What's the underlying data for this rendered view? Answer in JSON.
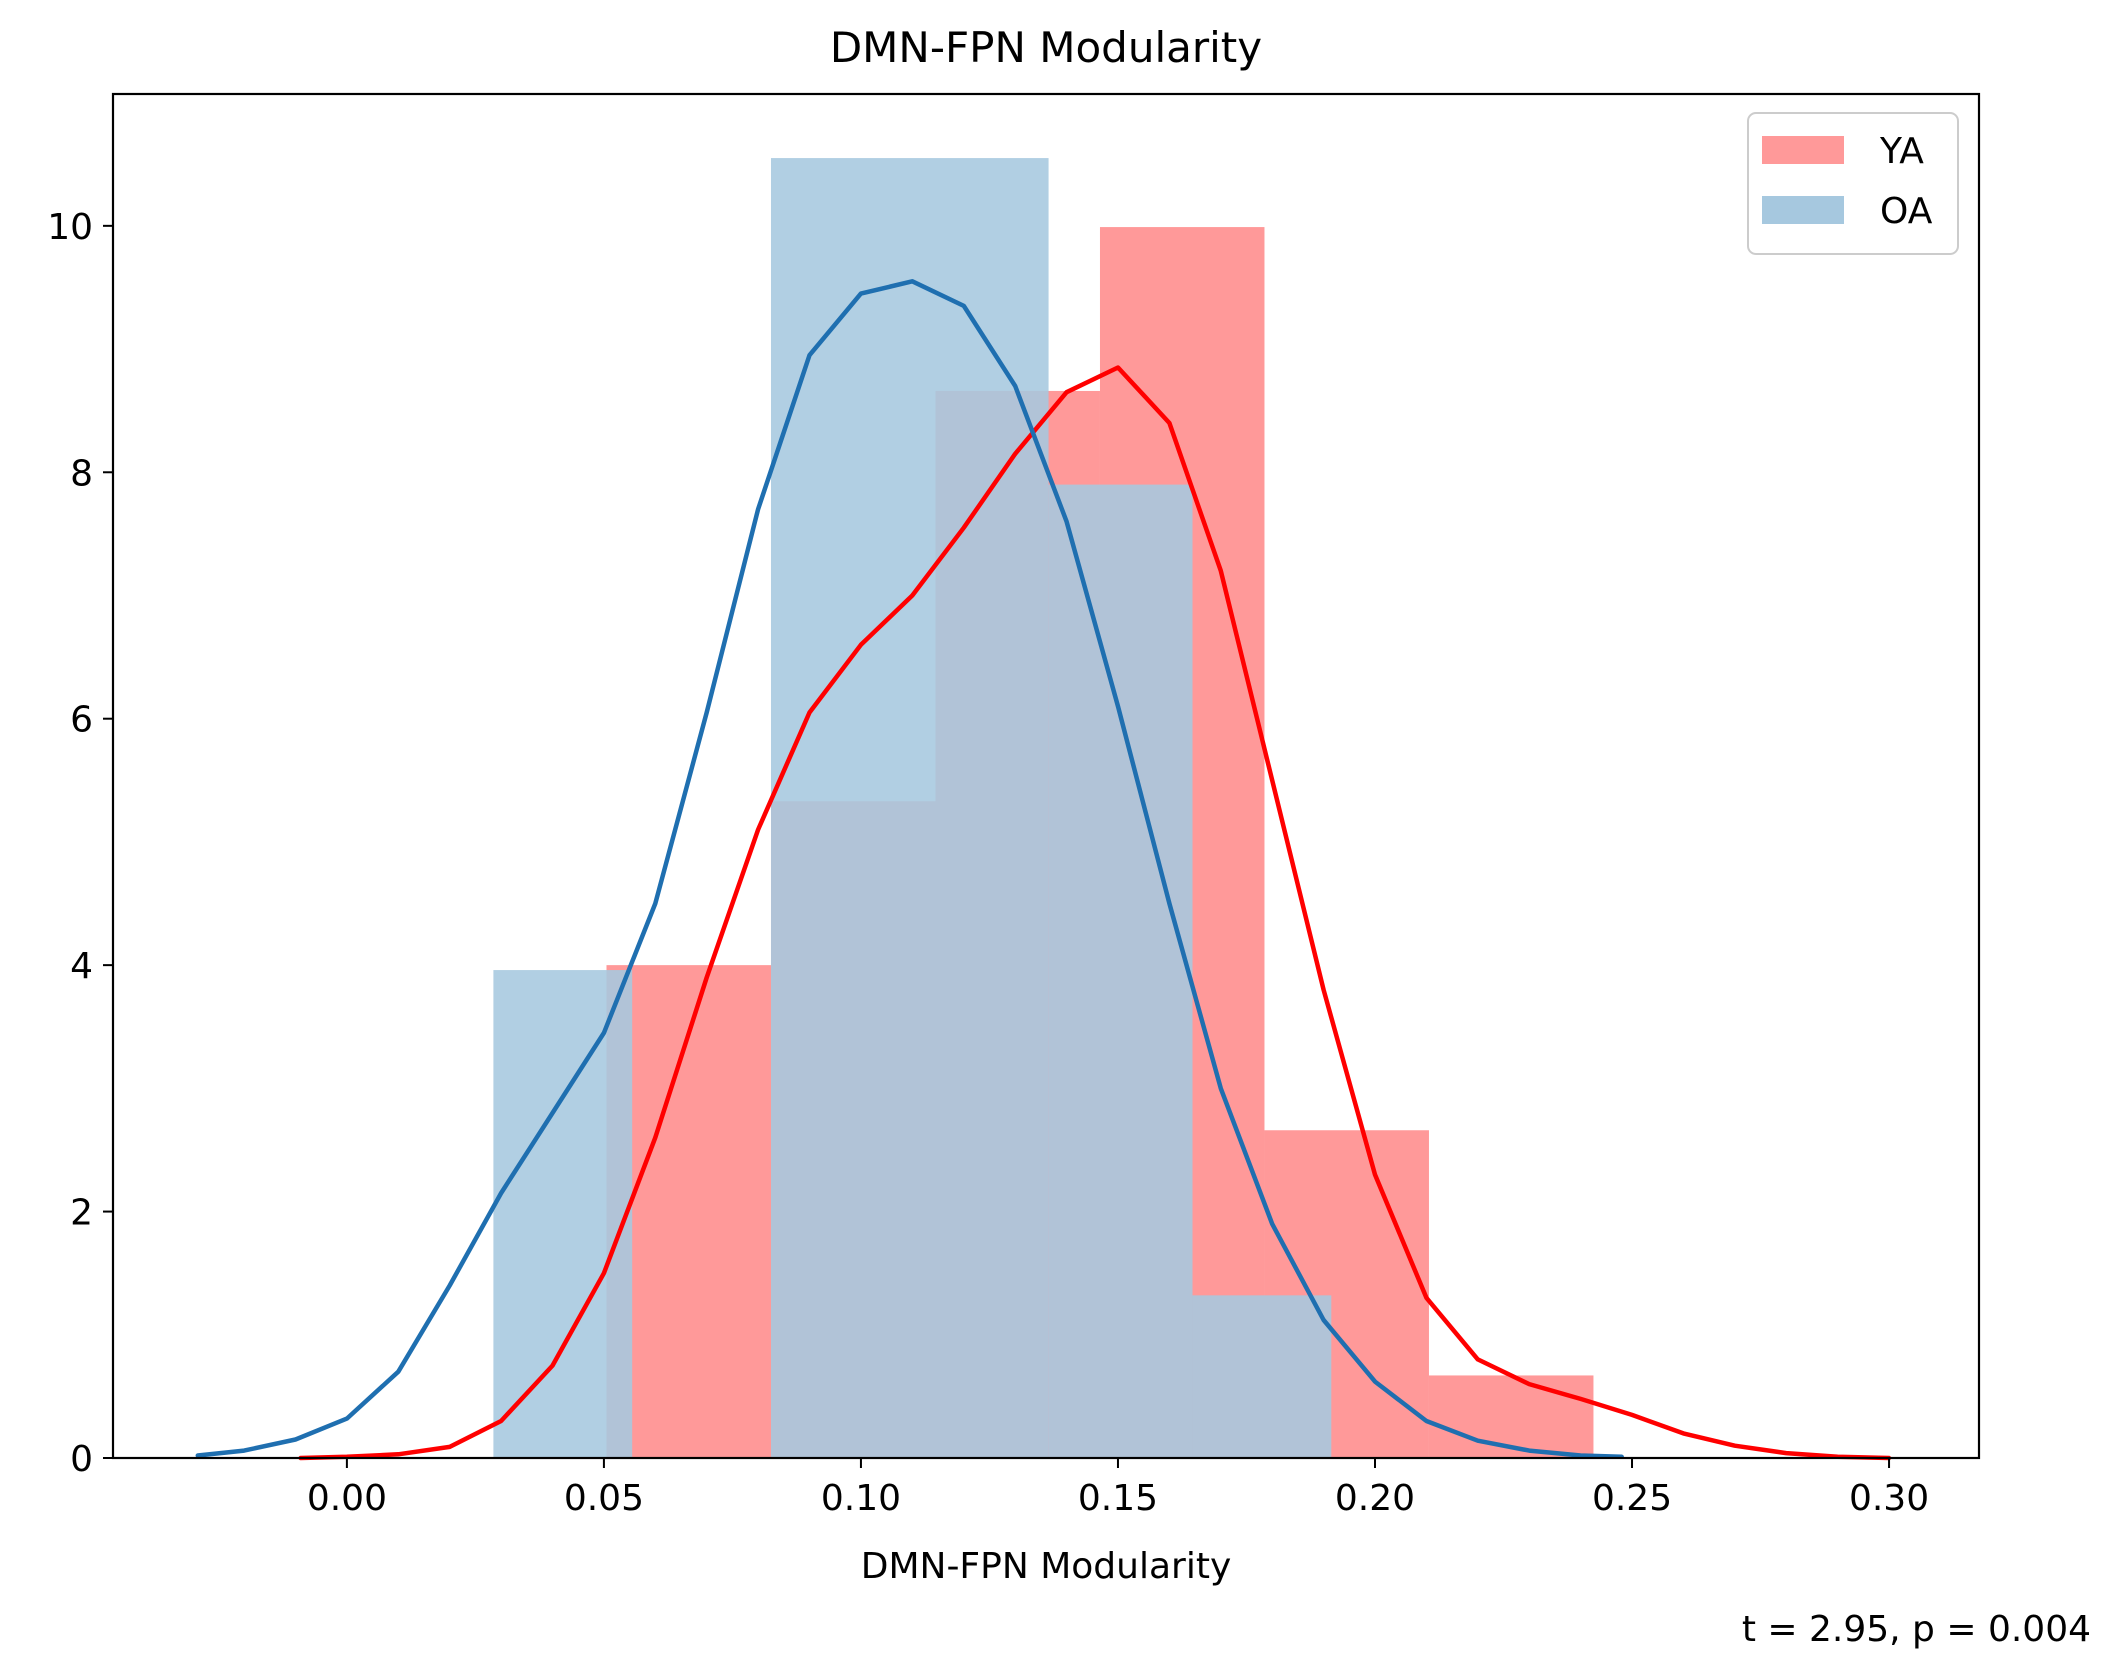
{
  "chart_data": {
    "type": "histogram",
    "title": "DMN-FPN Modularity",
    "xlabel": "DMN-FPN Modularity",
    "ylabel": "",
    "xlim": [
      -0.0455,
      0.3175
    ],
    "ylim": [
      0,
      11.07
    ],
    "x_ticks": [
      0.0,
      0.05,
      0.1,
      0.15,
      0.2,
      0.25,
      0.3
    ],
    "x_tick_labels": [
      "0.00",
      "0.05",
      "0.10",
      "0.15",
      "0.20",
      "0.25",
      "0.30"
    ],
    "y_ticks": [
      0,
      2,
      4,
      6,
      8,
      10
    ],
    "y_tick_labels": [
      "0",
      "2",
      "4",
      "6",
      "8",
      "10"
    ],
    "legend_position": "top-right",
    "annotation": "t = 2.95, p = 0.004",
    "series": [
      {
        "name": "YA",
        "bar_color": "#ff9999",
        "line_color": "#ff0000",
        "bins": [
          [
            0.0505,
            0.0825,
            4.0
          ],
          [
            0.0825,
            0.1145,
            5.33
          ],
          [
            0.1145,
            0.1465,
            8.66
          ],
          [
            0.1465,
            0.1785,
            9.99
          ],
          [
            0.1785,
            0.2105,
            2.66
          ],
          [
            0.2105,
            0.2425,
            0.67
          ]
        ],
        "kde": [
          [
            -0.009,
            0.0
          ],
          [
            0.0,
            0.01
          ],
          [
            0.01,
            0.03
          ],
          [
            0.02,
            0.09
          ],
          [
            0.03,
            0.3
          ],
          [
            0.04,
            0.75
          ],
          [
            0.05,
            1.5
          ],
          [
            0.06,
            2.6
          ],
          [
            0.07,
            3.9
          ],
          [
            0.08,
            5.1
          ],
          [
            0.09,
            6.05
          ],
          [
            0.1,
            6.6
          ],
          [
            0.11,
            7.0
          ],
          [
            0.12,
            7.55
          ],
          [
            0.13,
            8.15
          ],
          [
            0.14,
            8.65
          ],
          [
            0.15,
            8.85
          ],
          [
            0.16,
            8.4
          ],
          [
            0.17,
            7.2
          ],
          [
            0.18,
            5.5
          ],
          [
            0.19,
            3.8
          ],
          [
            0.2,
            2.3
          ],
          [
            0.21,
            1.3
          ],
          [
            0.22,
            0.8
          ],
          [
            0.23,
            0.6
          ],
          [
            0.24,
            0.48
          ],
          [
            0.25,
            0.35
          ],
          [
            0.26,
            0.2
          ],
          [
            0.27,
            0.1
          ],
          [
            0.28,
            0.04
          ],
          [
            0.29,
            0.01
          ],
          [
            0.3,
            0.0
          ]
        ]
      },
      {
        "name": "OA",
        "bar_color": "#a6c8df",
        "line_color": "#1f6fb0",
        "bins": [
          [
            0.0285,
            0.0555,
            3.96
          ],
          [
            0.0825,
            0.1365,
            10.55
          ],
          [
            0.1365,
            0.1645,
            7.9
          ],
          [
            0.1645,
            0.1915,
            1.32
          ]
        ],
        "kde": [
          [
            -0.029,
            0.02
          ],
          [
            -0.02,
            0.06
          ],
          [
            -0.01,
            0.15
          ],
          [
            0.0,
            0.32
          ],
          [
            0.01,
            0.7
          ],
          [
            0.02,
            1.4
          ],
          [
            0.03,
            2.15
          ],
          [
            0.04,
            2.8
          ],
          [
            0.05,
            3.45
          ],
          [
            0.06,
            4.5
          ],
          [
            0.07,
            6.05
          ],
          [
            0.08,
            7.7
          ],
          [
            0.09,
            8.95
          ],
          [
            0.1,
            9.45
          ],
          [
            0.11,
            9.55
          ],
          [
            0.12,
            9.35
          ],
          [
            0.13,
            8.7
          ],
          [
            0.14,
            7.6
          ],
          [
            0.15,
            6.1
          ],
          [
            0.16,
            4.5
          ],
          [
            0.17,
            3.0
          ],
          [
            0.18,
            1.9
          ],
          [
            0.19,
            1.12
          ],
          [
            0.2,
            0.62
          ],
          [
            0.21,
            0.3
          ],
          [
            0.22,
            0.14
          ],
          [
            0.23,
            0.06
          ],
          [
            0.24,
            0.02
          ],
          [
            0.248,
            0.01
          ]
        ]
      }
    ]
  }
}
